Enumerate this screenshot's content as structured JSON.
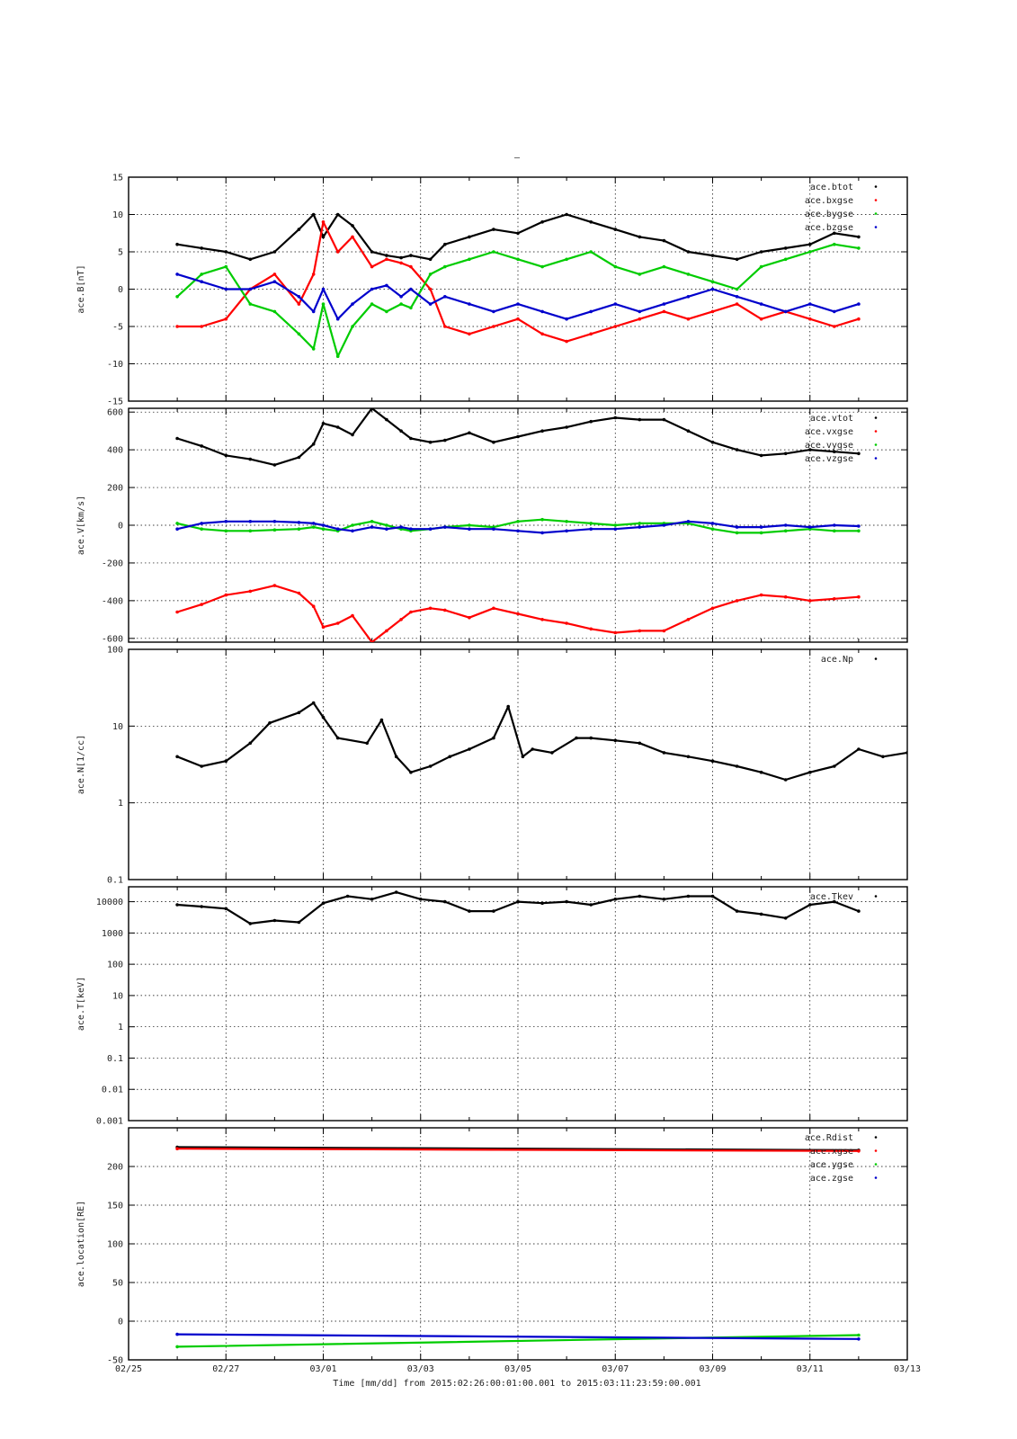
{
  "figure": {
    "top_title": "–",
    "xlabel": "Time [mm/dd]  from 2015:02:26:00:01:00.001  to  2015:03:11:23:59:00.001",
    "xtick_labels": [
      "02/25",
      "02/27",
      "03/01",
      "03/03",
      "03/05",
      "03/07",
      "03/09",
      "03/11",
      "03/13"
    ]
  },
  "chart_data": [
    {
      "type": "scatter",
      "ylabel": "ace.B[nT]",
      "yscale": "linear",
      "ylim": [
        -15,
        15
      ],
      "yticks": [
        -15,
        -10,
        -5,
        0,
        5,
        10,
        15
      ],
      "xlim": [
        0,
        16
      ],
      "grid": true,
      "legend_position": "top-right",
      "series": [
        {
          "name": "ace.btot",
          "color": "#000000",
          "x": [
            1.0,
            1.5,
            2.0,
            2.5,
            3.0,
            3.5,
            3.8,
            4.0,
            4.3,
            4.6,
            5.0,
            5.3,
            5.6,
            5.8,
            6.2,
            6.5,
            7.0,
            7.5,
            8.0,
            8.5,
            9.0,
            9.5,
            10.0,
            10.5,
            11.0,
            11.5,
            12.0,
            12.5,
            13.0,
            13.5,
            14.0,
            14.5,
            15.0
          ],
          "y": [
            6.0,
            5.5,
            5.0,
            4.0,
            5.0,
            8.0,
            10.0,
            7.0,
            10.0,
            8.5,
            5.0,
            4.5,
            4.2,
            4.5,
            4.0,
            6.0,
            7.0,
            8.0,
            7.5,
            9.0,
            10.0,
            9.0,
            8.0,
            7.0,
            6.5,
            5.0,
            4.5,
            4.0,
            5.0,
            5.5,
            6.0,
            7.5,
            7.0
          ]
        },
        {
          "name": "ace.bxgse",
          "color": "#ff0000",
          "x": [
            1.0,
            1.5,
            2.0,
            2.5,
            3.0,
            3.5,
            3.8,
            4.0,
            4.3,
            4.6,
            5.0,
            5.3,
            5.6,
            5.8,
            6.2,
            6.5,
            7.0,
            7.5,
            8.0,
            8.5,
            9.0,
            9.5,
            10.0,
            10.5,
            11.0,
            11.5,
            12.0,
            12.5,
            13.0,
            13.5,
            14.0,
            14.5,
            15.0
          ],
          "y": [
            -5.0,
            -5.0,
            -4.0,
            0.0,
            2.0,
            -2.0,
            2.0,
            9.0,
            5.0,
            7.0,
            3.0,
            4.0,
            3.5,
            3.0,
            0.0,
            -5.0,
            -6.0,
            -5.0,
            -4.0,
            -6.0,
            -7.0,
            -6.0,
            -5.0,
            -4.0,
            -3.0,
            -4.0,
            -3.0,
            -2.0,
            -4.0,
            -3.0,
            -4.0,
            -5.0,
            -4.0
          ]
        },
        {
          "name": "ace.bygse",
          "color": "#00cc00",
          "x": [
            1.0,
            1.5,
            2.0,
            2.5,
            3.0,
            3.5,
            3.8,
            4.0,
            4.3,
            4.6,
            5.0,
            5.3,
            5.6,
            5.8,
            6.2,
            6.5,
            7.0,
            7.5,
            8.0,
            8.5,
            9.0,
            9.5,
            10.0,
            10.5,
            11.0,
            11.5,
            12.0,
            12.5,
            13.0,
            13.5,
            14.0,
            14.5,
            15.0
          ],
          "y": [
            -1.0,
            2.0,
            3.0,
            -2.0,
            -3.0,
            -6.0,
            -8.0,
            -2.0,
            -9.0,
            -5.0,
            -2.0,
            -3.0,
            -2.0,
            -2.5,
            2.0,
            3.0,
            4.0,
            5.0,
            4.0,
            3.0,
            4.0,
            5.0,
            3.0,
            2.0,
            3.0,
            2.0,
            1.0,
            0.0,
            3.0,
            4.0,
            5.0,
            6.0,
            5.5
          ]
        },
        {
          "name": "ace.bzgse",
          "color": "#0000cc",
          "x": [
            1.0,
            1.5,
            2.0,
            2.5,
            3.0,
            3.5,
            3.8,
            4.0,
            4.3,
            4.6,
            5.0,
            5.3,
            5.6,
            5.8,
            6.2,
            6.5,
            7.0,
            7.5,
            8.0,
            8.5,
            9.0,
            9.5,
            10.0,
            10.5,
            11.0,
            11.5,
            12.0,
            12.5,
            13.0,
            13.5,
            14.0,
            14.5,
            15.0
          ],
          "y": [
            2.0,
            1.0,
            0.0,
            0.0,
            1.0,
            -1.0,
            -3.0,
            0.0,
            -4.0,
            -2.0,
            0.0,
            0.5,
            -1.0,
            0.0,
            -2.0,
            -1.0,
            -2.0,
            -3.0,
            -2.0,
            -3.0,
            -4.0,
            -3.0,
            -2.0,
            -3.0,
            -2.0,
            -1.0,
            0.0,
            -1.0,
            -2.0,
            -3.0,
            -2.0,
            -3.0,
            -2.0
          ]
        }
      ]
    },
    {
      "type": "scatter",
      "ylabel": "ace.V[km/s]",
      "yscale": "linear",
      "ylim": [
        -620,
        620
      ],
      "yticks": [
        -600,
        -400,
        -200,
        0,
        200,
        400,
        600
      ],
      "xlim": [
        0,
        16
      ],
      "grid": true,
      "legend_position": "top-right",
      "series": [
        {
          "name": "ace.vtot",
          "color": "#000000",
          "x": [
            1.0,
            1.5,
            2.0,
            2.5,
            3.0,
            3.5,
            3.8,
            4.0,
            4.3,
            4.6,
            5.0,
            5.3,
            5.6,
            5.8,
            6.2,
            6.5,
            7.0,
            7.5,
            8.0,
            8.5,
            9.0,
            9.5,
            10.0,
            10.5,
            11.0,
            11.5,
            12.0,
            12.5,
            13.0,
            13.5,
            14.0,
            14.5,
            15.0
          ],
          "y": [
            460,
            420,
            370,
            350,
            320,
            360,
            430,
            540,
            520,
            480,
            620,
            560,
            500,
            460,
            440,
            450,
            490,
            440,
            470,
            500,
            520,
            550,
            570,
            560,
            560,
            500,
            440,
            400,
            370,
            380,
            400,
            390,
            380
          ]
        },
        {
          "name": "ace.vxgse",
          "color": "#ff0000",
          "x": [
            1.0,
            1.5,
            2.0,
            2.5,
            3.0,
            3.5,
            3.8,
            4.0,
            4.3,
            4.6,
            5.0,
            5.3,
            5.6,
            5.8,
            6.2,
            6.5,
            7.0,
            7.5,
            8.0,
            8.5,
            9.0,
            9.5,
            10.0,
            10.5,
            11.0,
            11.5,
            12.0,
            12.5,
            13.0,
            13.5,
            14.0,
            14.5,
            15.0
          ],
          "y": [
            -460,
            -420,
            -370,
            -350,
            -320,
            -360,
            -430,
            -540,
            -520,
            -480,
            -620,
            -560,
            -500,
            -460,
            -440,
            -450,
            -490,
            -440,
            -470,
            -500,
            -520,
            -550,
            -570,
            -560,
            -560,
            -500,
            -440,
            -400,
            -370,
            -380,
            -400,
            -390,
            -380
          ]
        },
        {
          "name": "ace.vygse",
          "color": "#00cc00",
          "x": [
            1.0,
            1.5,
            2.0,
            2.5,
            3.0,
            3.5,
            3.8,
            4.0,
            4.3,
            4.6,
            5.0,
            5.3,
            5.6,
            5.8,
            6.2,
            6.5,
            7.0,
            7.5,
            8.0,
            8.5,
            9.0,
            9.5,
            10.0,
            10.5,
            11.0,
            11.5,
            12.0,
            12.5,
            13.0,
            13.5,
            14.0,
            14.5,
            15.0
          ],
          "y": [
            10,
            -20,
            -30,
            -30,
            -25,
            -20,
            -10,
            -20,
            -30,
            0,
            20,
            0,
            -20,
            -30,
            -20,
            -10,
            0,
            -10,
            20,
            30,
            20,
            10,
            0,
            10,
            10,
            10,
            -20,
            -40,
            -40,
            -30,
            -20,
            -30,
            -30
          ]
        },
        {
          "name": "ace.vzgse",
          "color": "#0000cc",
          "x": [
            1.0,
            1.5,
            2.0,
            2.5,
            3.0,
            3.5,
            3.8,
            4.0,
            4.3,
            4.6,
            5.0,
            5.3,
            5.6,
            5.8,
            6.2,
            6.5,
            7.0,
            7.5,
            8.0,
            8.5,
            9.0,
            9.5,
            10.0,
            10.5,
            11.0,
            11.5,
            12.0,
            12.5,
            13.0,
            13.5,
            14.0,
            14.5,
            15.0
          ],
          "y": [
            -20,
            10,
            20,
            20,
            20,
            15,
            10,
            0,
            -20,
            -30,
            -10,
            -20,
            -10,
            -20,
            -20,
            -10,
            -20,
            -20,
            -30,
            -40,
            -30,
            -20,
            -20,
            -10,
            0,
            20,
            10,
            -10,
            -10,
            0,
            -10,
            0,
            -5
          ]
        }
      ]
    },
    {
      "type": "scatter",
      "ylabel": "ace.N[1/cc]",
      "yscale": "log",
      "ylim": [
        0.1,
        100
      ],
      "yticks": [
        0.1,
        1,
        10,
        100
      ],
      "ytick_labels": [
        "0.1",
        "1",
        "10",
        "100"
      ],
      "xlim": [
        0,
        16
      ],
      "grid": true,
      "legend_position": "top-right",
      "series": [
        {
          "name": "ace.Np",
          "color": "#000000",
          "x": [
            1.0,
            1.5,
            2.0,
            2.5,
            2.9,
            3.5,
            3.8,
            4.0,
            4.3,
            4.9,
            5.2,
            5.5,
            5.8,
            6.2,
            6.6,
            7.0,
            7.5,
            7.8,
            8.1,
            8.3,
            8.7,
            9.2,
            9.5,
            10.0,
            10.5,
            11.0,
            11.5,
            12.0,
            12.5,
            13.0,
            13.5,
            14.0,
            14.5,
            15.0,
            15.5,
            16.0
          ],
          "y": [
            4.0,
            3.0,
            3.5,
            6.0,
            11.0,
            15.0,
            20.0,
            13.0,
            7.0,
            6.0,
            12.0,
            4.0,
            2.5,
            3.0,
            4.0,
            5.0,
            7.0,
            18.0,
            4.0,
            5.0,
            4.5,
            7.0,
            7.0,
            6.5,
            6.0,
            4.5,
            4.0,
            3.5,
            3.0,
            2.5,
            2.0,
            2.5,
            3.0,
            5.0,
            4.0,
            4.5
          ]
        }
      ]
    },
    {
      "type": "scatter",
      "ylabel": "ace.T[keV]",
      "yscale": "log",
      "ylim": [
        0.001,
        30000
      ],
      "yticks": [
        0.001,
        0.01,
        0.1,
        1,
        10,
        100,
        1000,
        10000
      ],
      "ytick_labels": [
        "0.001",
        "0.01",
        "0.1",
        "1",
        "10",
        "100",
        "1000",
        "10000"
      ],
      "xlim": [
        0,
        16
      ],
      "grid": true,
      "legend_position": "top-right",
      "series": [
        {
          "name": "ace.Tkev",
          "color": "#000000",
          "x": [
            1.0,
            1.5,
            2.0,
            2.5,
            3.0,
            3.5,
            4.0,
            4.5,
            5.0,
            5.5,
            6.0,
            6.5,
            7.0,
            7.5,
            8.0,
            8.5,
            9.0,
            9.5,
            10.0,
            10.5,
            11.0,
            11.5,
            12.0,
            12.5,
            13.0,
            13.5,
            14.0,
            14.5,
            15.0
          ],
          "y": [
            8000,
            7000,
            6000,
            2000,
            2500,
            2200,
            9000,
            15000,
            12000,
            20000,
            12000,
            10000,
            5000,
            5000,
            10000,
            9000,
            10000,
            8000,
            12000,
            15000,
            12000,
            15000,
            15000,
            5000,
            4000,
            3000,
            8000,
            10000,
            5000
          ]
        }
      ]
    },
    {
      "type": "scatter",
      "ylabel": "ace.location[RE]",
      "yscale": "linear",
      "ylim": [
        -50,
        250
      ],
      "yticks": [
        -50,
        0,
        50,
        100,
        150,
        200
      ],
      "xlim": [
        0,
        16
      ],
      "grid": true,
      "legend_position": "top-right",
      "series": [
        {
          "name": "ace.Rdist",
          "color": "#000000",
          "x": [
            1.0,
            15.0
          ],
          "y": [
            225,
            221
          ]
        },
        {
          "name": "ace.xgse",
          "color": "#ff0000",
          "x": [
            1.0,
            15.0
          ],
          "y": [
            223,
            220
          ]
        },
        {
          "name": "ace.ygse",
          "color": "#00cc00",
          "x": [
            1.0,
            15.0
          ],
          "y": [
            -33,
            -18
          ]
        },
        {
          "name": "ace.zgse",
          "color": "#0000cc",
          "x": [
            1.0,
            15.0
          ],
          "y": [
            -17,
            -23
          ]
        }
      ]
    }
  ]
}
